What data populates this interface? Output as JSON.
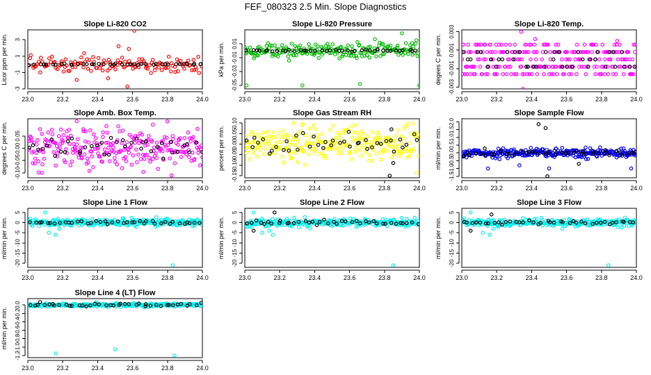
{
  "figure": {
    "title": "FEF_080323  2.5 Min. Slope Diagnostics"
  },
  "chart_data": [
    {
      "id": "li820-co2",
      "type": "scatter",
      "title": "Slope Li-820 CO2",
      "ylabel": "Licor ppm per min.",
      "xlim": [
        23.0,
        24.0
      ],
      "xticks": [
        23.0,
        23.2,
        23.4,
        23.6,
        23.8,
        24.0
      ],
      "xtick_labels": [
        "23.0",
        "23.2",
        "23.4",
        "23.6",
        "23.8",
        "24.0"
      ],
      "ylim": [
        -3,
        4.2
      ],
      "yticks": [
        -3,
        -1,
        1,
        3
      ],
      "ytick_labels": [
        "-3",
        "-1",
        "1",
        "3"
      ],
      "series": [
        {
          "name": "all",
          "color": "#ff0000",
          "center": 0.0,
          "spread": 0.5,
          "count": 140,
          "outliers": [
            [
              23.61,
              4.1
            ],
            [
              23.57,
              -2.7
            ],
            [
              23.52,
              2.2
            ],
            [
              23.28,
              -1.9
            ],
            [
              23.46,
              -1.7
            ]
          ]
        },
        {
          "name": "mean",
          "color": "#000000",
          "center": 0.0,
          "spread": 0.05,
          "count": 40
        }
      ]
    },
    {
      "id": "li820-pressure",
      "type": "scatter",
      "title": "Slope Li-820 Pressure",
      "ylabel": "kPa per min.",
      "xlim": [
        23.0,
        24.0
      ],
      "xticks": [
        23.0,
        23.2,
        23.4,
        23.6,
        23.8,
        24.0
      ],
      "xtick_labels": [
        "23.0",
        "23.2",
        "23.4",
        "23.6",
        "23.8",
        "24.0"
      ],
      "ylim": [
        -0.055,
        0.03
      ],
      "yticks": [
        -0.05,
        -0.03,
        -0.01,
        0.01
      ],
      "ytick_labels": [
        "-0.05",
        "-0.03",
        "-0.01",
        "0.01"
      ],
      "series": [
        {
          "name": "all",
          "color": "#00bb00",
          "center": 0.0,
          "spread": 0.006,
          "count": 200,
          "outliers": [
            [
              23.01,
              -0.05
            ],
            [
              23.33,
              -0.05
            ],
            [
              23.66,
              -0.048
            ],
            [
              24.0,
              -0.05
            ],
            [
              23.9,
              0.025
            ]
          ]
        },
        {
          "name": "mean",
          "color": "#000000",
          "center": 0.0,
          "spread": 0.0008,
          "count": 40
        }
      ]
    },
    {
      "id": "li820-temp",
      "type": "scatter",
      "title": "Slope Li-820 Temp.",
      "ylabel": "degees C per min.",
      "xlim": [
        23.0,
        24.0
      ],
      "xticks": [
        23.0,
        23.2,
        23.4,
        23.6,
        23.8,
        24.0
      ],
      "xtick_labels": [
        "23.0",
        "23.2",
        "23.4",
        "23.6",
        "23.8",
        "24.0"
      ],
      "ylim": [
        -0.0032,
        0.0032
      ],
      "yticks": [
        -0.003,
        -0.001,
        0.001,
        0.003
      ],
      "ytick_labels": [
        "-0.003",
        "-0.001",
        "0.001",
        "0.003"
      ],
      "series": [
        {
          "name": "all",
          "color": "#ff00ff",
          "center": 0.0,
          "spread": 0.0006,
          "count": 260,
          "levels": [
            -0.0016,
            -0.0008,
            0.0,
            0.0008,
            0.0016
          ],
          "outliers": [
            [
              23.34,
              0.003
            ],
            [
              23.35,
              -0.0032
            ],
            [
              23.42,
              0.0022
            ],
            [
              23.89,
              0.002
            ]
          ]
        },
        {
          "name": "mean",
          "color": "#000000",
          "center": 0.0,
          "spread": 0.0004,
          "count": 40,
          "levels": [
            -0.0008,
            0.0,
            0.0008
          ]
        }
      ]
    },
    {
      "id": "amb-box-temp",
      "type": "scatter",
      "title": "Slope Amb. Box Temp.",
      "ylabel": "degrees C per min.",
      "xlim": [
        23.0,
        24.0
      ],
      "xticks": [
        23.0,
        23.2,
        23.4,
        23.6,
        23.8,
        24.0
      ],
      "xtick_labels": [
        "23.0",
        "23.2",
        "23.4",
        "23.6",
        "23.8",
        "24.0"
      ],
      "ylim": [
        -0.12,
        0.12
      ],
      "yticks": [
        -0.1,
        -0.05,
        0.0,
        0.05
      ],
      "ytick_labels": [
        "-0.10",
        "-0.05",
        "0.00",
        "0.05"
      ],
      "series": [
        {
          "name": "all",
          "color": "#ff00ff",
          "center": 0.0,
          "spread": 0.04,
          "count": 260,
          "outliers": [
            [
              23.28,
              0.11
            ],
            [
              23.45,
              0.09
            ],
            [
              23.08,
              -0.1
            ]
          ]
        },
        {
          "name": "mean",
          "color": "#000000",
          "center": 0.0,
          "spread": 0.025,
          "count": 40
        }
      ]
    },
    {
      "id": "gas-stream-rh",
      "type": "scatter",
      "title": "Slope Gas Stream RH",
      "ylabel": "percent per min.",
      "xlim": [
        23.0,
        24.0
      ],
      "xticks": [
        23.0,
        23.2,
        23.4,
        23.6,
        23.8,
        24.0
      ],
      "xtick_labels": [
        "23.0",
        "23.2",
        "23.4",
        "23.6",
        "23.8",
        "24.0"
      ],
      "ylim": [
        -0.16,
        0.12
      ],
      "yticks": [
        -0.15,
        -0.1,
        -0.05,
        0.0,
        0.05,
        0.1
      ],
      "ytick_labels": [
        "-0.15",
        "-0.10",
        "-0.05",
        "0.00",
        "0.05",
        "0.10"
      ],
      "series": [
        {
          "name": "all",
          "color": "#ffff00",
          "center": 0.0,
          "spread": 0.04,
          "count": 260,
          "outliers": [
            [
              23.28,
              0.1
            ],
            [
              23.33,
              0.09
            ]
          ]
        },
        {
          "name": "mean",
          "color": "#000000",
          "center": 0.0,
          "spread": 0.025,
          "count": 40,
          "outliers": [
            [
              23.83,
              -0.15
            ],
            [
              23.85,
              -0.09
            ],
            [
              23.84,
              0.07
            ]
          ]
        }
      ]
    },
    {
      "id": "sample-flow",
      "type": "scatter",
      "title": "Slope Sample Flow",
      "ylabel": "ml/min per min.",
      "xlim": [
        23.0,
        24.0
      ],
      "xticks": [
        23.0,
        23.2,
        23.4,
        23.6,
        23.8,
        24.0
      ],
      "xtick_labels": [
        "23.0",
        "23.2",
        "23.4",
        "23.6",
        "23.8",
        "24.0"
      ],
      "ylim": [
        -1.6,
        2.2
      ],
      "yticks": [
        -1.5,
        -1.0,
        -0.5,
        0.0,
        0.5,
        1.0,
        1.5,
        2.0
      ],
      "ytick_labels": [
        "-1.5",
        "-1.0",
        "-0.5",
        "0.0",
        "0.5",
        "1.0",
        "1.5",
        "2.0"
      ],
      "series": [
        {
          "name": "all",
          "color": "#0000ee",
          "center": 0.0,
          "spread": 0.15,
          "count": 280,
          "outliers": [
            [
              23.15,
              -1.0
            ],
            [
              23.33,
              -0.8
            ],
            [
              23.5,
              -1.0
            ],
            [
              23.97,
              -1.0
            ]
          ]
        },
        {
          "name": "mean",
          "color": "#000000",
          "center": 0.0,
          "spread": 0.12,
          "count": 45,
          "outliers": [
            [
              23.44,
              1.85
            ],
            [
              23.48,
              1.6
            ],
            [
              23.49,
              -1.5
            ],
            [
              23.67,
              -0.7
            ]
          ]
        }
      ]
    },
    {
      "id": "line1-flow",
      "type": "scatter",
      "title": "Slope Line 1 Flow",
      "ylabel": "ml/min per min.",
      "xlim": [
        23.0,
        24.0
      ],
      "xticks": [
        23.0,
        23.2,
        23.4,
        23.6,
        23.8,
        24.0
      ],
      "xtick_labels": [
        "23.0",
        "23.2",
        "23.4",
        "23.6",
        "23.8",
        "24.0"
      ],
      "ylim": [
        -22,
        7
      ],
      "yticks": [
        -20,
        -15,
        -10,
        -5,
        0,
        5
      ],
      "ytick_labels": [
        "-20",
        "-15",
        "-10",
        "-5",
        "0",
        "5"
      ],
      "series": [
        {
          "name": "all",
          "color": "#00eeee",
          "center": 0.0,
          "spread": 0.9,
          "count": 260,
          "outliers": [
            [
              23.12,
              -5
            ],
            [
              23.16,
              -6
            ],
            [
              23.18,
              -3
            ],
            [
              23.1,
              5
            ],
            [
              23.83,
              -21
            ]
          ]
        },
        {
          "name": "mean",
          "color": "#000000",
          "center": 0.0,
          "spread": 0.4,
          "count": 40
        }
      ]
    },
    {
      "id": "line2-flow",
      "type": "scatter",
      "title": "Slope Line 2 Flow",
      "ylabel": "ml/min per min.",
      "xlim": [
        23.0,
        24.0
      ],
      "xticks": [
        23.0,
        23.2,
        23.4,
        23.6,
        23.8,
        24.0
      ],
      "xtick_labels": [
        "23.0",
        "23.2",
        "23.4",
        "23.6",
        "23.8",
        "24.0"
      ],
      "ylim": [
        -22,
        7
      ],
      "yticks": [
        -20,
        -15,
        -10,
        -5,
        0,
        5
      ],
      "ytick_labels": [
        "-20",
        "-15",
        "-10",
        "-5",
        "0",
        "5"
      ],
      "series": [
        {
          "name": "all",
          "color": "#00eeee",
          "center": 0.0,
          "spread": 0.9,
          "count": 260,
          "outliers": [
            [
              23.1,
              -5
            ],
            [
              23.14,
              -4
            ],
            [
              23.16,
              -6
            ],
            [
              23.05,
              5
            ],
            [
              23.85,
              -21
            ]
          ]
        },
        {
          "name": "mean",
          "color": "#000000",
          "center": 0.0,
          "spread": 0.5,
          "count": 40,
          "outliers": [
            [
              23.05,
              -4
            ],
            [
              23.17,
              5
            ]
          ]
        }
      ]
    },
    {
      "id": "line3-flow",
      "type": "scatter",
      "title": "Slope Line 3 Flow",
      "ylabel": "ml/min per min.",
      "xlim": [
        23.0,
        24.0
      ],
      "xticks": [
        23.0,
        23.2,
        23.4,
        23.6,
        23.8,
        24.0
      ],
      "xtick_labels": [
        "23.0",
        "23.2",
        "23.4",
        "23.6",
        "23.8",
        "24.0"
      ],
      "ylim": [
        -22,
        7
      ],
      "yticks": [
        -20,
        -15,
        -10,
        -5,
        0,
        5
      ],
      "ytick_labels": [
        "-20",
        "-15",
        "-10",
        "-5",
        "0",
        "5"
      ],
      "series": [
        {
          "name": "all",
          "color": "#00eeee",
          "center": 0.0,
          "spread": 0.9,
          "count": 260,
          "outliers": [
            [
              23.12,
              -5
            ],
            [
              23.16,
              -6
            ],
            [
              23.18,
              -3
            ],
            [
              23.05,
              5
            ],
            [
              23.84,
              -21
            ]
          ]
        },
        {
          "name": "mean",
          "color": "#000000",
          "center": 0.0,
          "spread": 0.5,
          "count": 40,
          "outliers": [
            [
              23.05,
              -4
            ],
            [
              23.17,
              4
            ]
          ]
        }
      ]
    },
    {
      "id": "line4-lt-flow",
      "type": "scatter",
      "title": "Slope Line 4 (LT) Flow",
      "ylabel": "ml/min per min.",
      "xlim": [
        23.0,
        24.0
      ],
      "xticks": [
        23.0,
        23.2,
        23.4,
        23.6,
        23.8,
        24.0
      ],
      "xtick_labels": [
        "23.0",
        "23.2",
        "23.4",
        "23.6",
        "23.8",
        "24.0"
      ],
      "ylim": [
        -1.25,
        0.15
      ],
      "yticks": [
        -1.2,
        -1.0,
        -0.8,
        -0.6,
        -0.4,
        -0.2,
        0.0
      ],
      "ytick_labels": [
        "-1.2",
        "-1.0",
        "-0.8",
        "-0.6",
        "-0.4",
        "-0.2",
        "0.0"
      ],
      "series": [
        {
          "name": "all",
          "color": "#00eeee",
          "center": 0.0,
          "spread": 0.02,
          "count": 260,
          "outliers": [
            [
              23.16,
              -1.15
            ],
            [
              23.5,
              -1.05
            ],
            [
              23.84,
              -1.2
            ]
          ]
        },
        {
          "name": "mean",
          "color": "#000000",
          "center": 0.0,
          "spread": 0.025,
          "count": 40,
          "outliers": [
            [
              23.07,
              0.07
            ]
          ]
        }
      ]
    }
  ]
}
